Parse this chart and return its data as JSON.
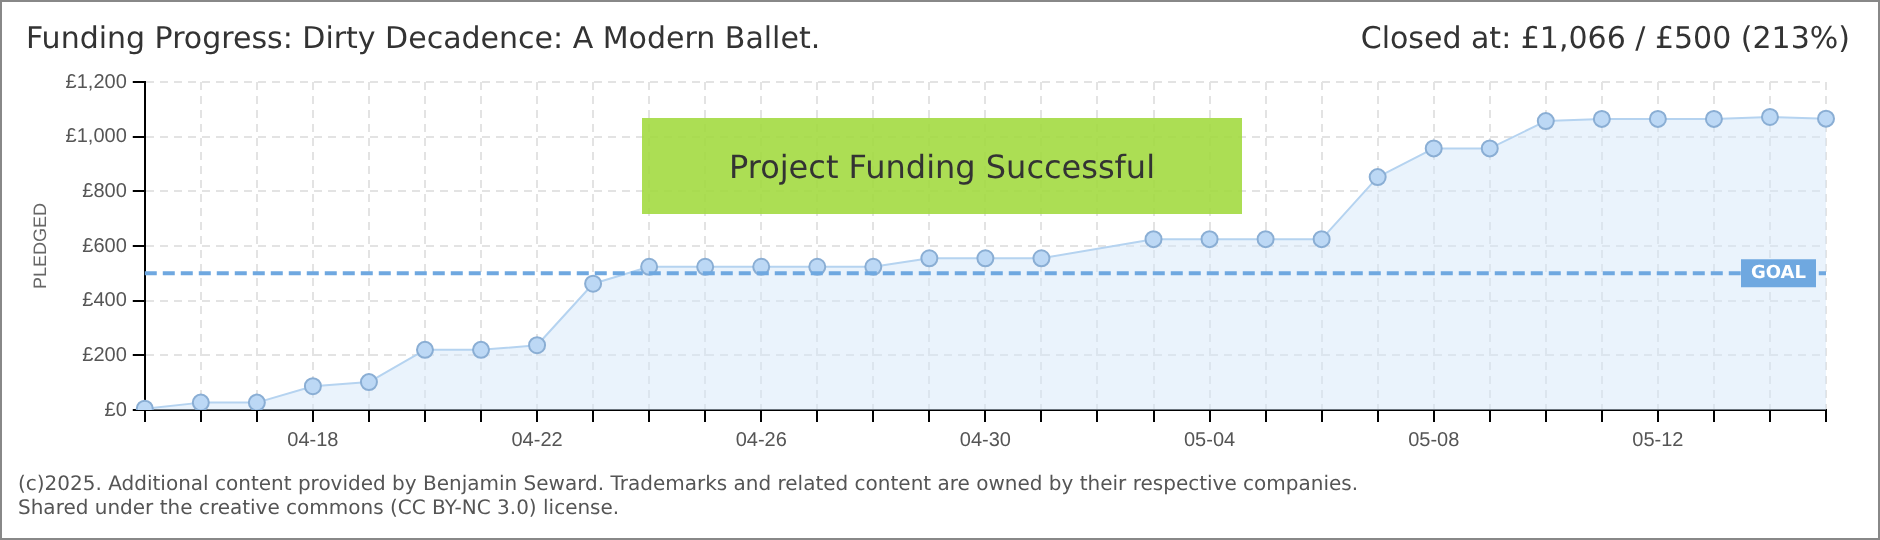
{
  "chart_data": {
    "type": "area",
    "title": "Funding Progress: Dirty Decadence: A Modern Ballet.",
    "subtitle": "Closed at:  £1,066 /  £500 (213%)",
    "ylabel": "PLEDGED",
    "categories": [
      null,
      null,
      null,
      "04-18",
      null,
      null,
      null,
      "04-22",
      null,
      null,
      null,
      "04-26",
      null,
      null,
      null,
      "04-30",
      null,
      null,
      null,
      "05-04",
      null,
      null,
      null,
      "05-08",
      null,
      null,
      null,
      "05-12",
      null,
      null,
      null
    ],
    "series": [
      {
        "color": "#b5d3f0",
        "values": [
          5,
          27,
          27,
          87,
          102,
          220,
          220,
          237,
          462,
          524,
          524,
          524,
          524,
          524,
          555,
          555,
          555,
          null,
          625,
          625,
          625,
          625,
          852,
          957,
          957,
          1057,
          1065,
          1065,
          1065,
          1072,
          1066
        ]
      }
    ],
    "ylim": [
      0,
      1200
    ],
    "yticks": [
      {
        "value": 0,
        "label": "£0"
      },
      {
        "value": 200,
        "label": "£200"
      },
      {
        "value": 400,
        "label": "£400"
      },
      {
        "value": 600,
        "label": "£600"
      },
      {
        "value": 800,
        "label": "£800"
      },
      {
        "value": 1000,
        "label": "£1,000"
      },
      {
        "value": 1200,
        "label": "£1,200"
      }
    ],
    "ref_lines": [
      {
        "axis": "y",
        "value": 500,
        "label": "GOAL",
        "color": "#6fa8e0",
        "line_style": "dashed"
      }
    ],
    "annotations": [
      "Project Funding Successful",
      "(c)2025. Additional content provided by Benjamin Seward. Trademarks and related content are owned by their respective companies.",
      "Shared under the creative commons (CC BY-NC 3.0) license."
    ],
    "grid": true,
    "legend": false,
    "marker": "circle",
    "line_style": "solid"
  }
}
